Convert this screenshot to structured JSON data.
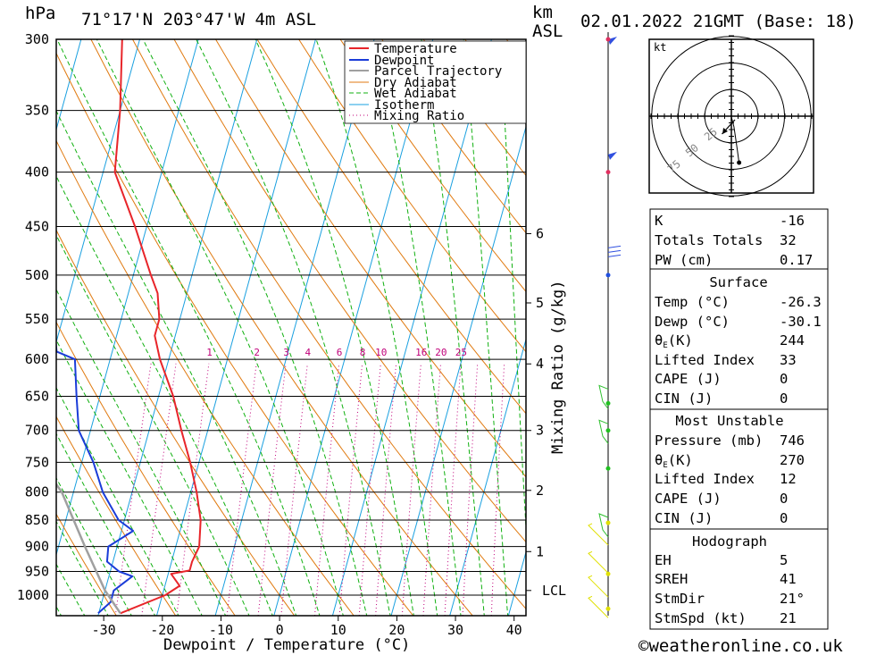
{
  "header": {
    "location": "71°17'N  203°47'W  4m  ASL",
    "datetime": "02.01.2022  21GMT  (Base: 18)",
    "hpa_unit": "hPa",
    "km_unit": "km",
    "asl_unit": "ASL"
  },
  "colors": {
    "temperature": "#e8252a",
    "dewpoint": "#1a3cd8",
    "parcel": "#a0a0a0",
    "dry_adiabat": "#e07a10",
    "wet_adiabat": "#10b010",
    "isotherm": "#1aa0e0",
    "mixing_ratio": "#c0007a",
    "wind_upper": "#3050e0",
    "wind_mid": "#30c030",
    "wind_low": "#e0e000"
  },
  "chart_data": {
    "type": "line",
    "title": "",
    "xlabel": "Dewpoint / Temperature (°C)",
    "ylabel": "hPa",
    "right_axis_label": "Mixing Ratio (g/kg)",
    "xlim": [
      -40,
      42
    ],
    "pressure_levels": [
      300,
      350,
      400,
      450,
      500,
      550,
      600,
      650,
      700,
      750,
      800,
      850,
      900,
      950,
      1000
    ],
    "x_ticks": [
      -30,
      -20,
      -10,
      0,
      10,
      20,
      30,
      40
    ],
    "skew_deg_per_log": 50,
    "km_ticks": [
      {
        "label": "6",
        "p": 457
      },
      {
        "label": "5",
        "p": 531
      },
      {
        "label": "4",
        "p": 606
      },
      {
        "label": "3",
        "p": 700
      },
      {
        "label": "2",
        "p": 797
      },
      {
        "label": "1",
        "p": 910
      }
    ],
    "lcl": {
      "label": "LCL",
      "p": 990
    },
    "mixing_ratio_labels": [
      "1",
      "2",
      "3",
      "4",
      "6",
      "8",
      "10",
      "16",
      "20",
      "25"
    ],
    "mixing_ratio_values": [
      1,
      2,
      3,
      4,
      6,
      8,
      10,
      16,
      20,
      25
    ],
    "legend": [
      "Temperature",
      "Dewpoint",
      "Parcel Trajectory",
      "Dry Adiabat",
      "Wet Adiabat",
      "Isotherm",
      "Mixing Ratio"
    ],
    "legend_placement": "top-right",
    "series": [
      {
        "name": "Temperature",
        "points": [
          [
            1040,
            -26.3
          ],
          [
            1000,
            -19.5
          ],
          [
            980,
            -17.5
          ],
          [
            955,
            -19.5
          ],
          [
            948,
            -16.5
          ],
          [
            930,
            -16.5
          ],
          [
            900,
            -16
          ],
          [
            850,
            -17
          ],
          [
            800,
            -19
          ],
          [
            750,
            -21.5
          ],
          [
            700,
            -24.5
          ],
          [
            650,
            -27.5
          ],
          [
            600,
            -31.5
          ],
          [
            570,
            -33.5
          ],
          [
            550,
            -33.5
          ],
          [
            520,
            -35
          ],
          [
            500,
            -37
          ],
          [
            450,
            -42
          ],
          [
            400,
            -48
          ],
          [
            350,
            -50
          ],
          [
            300,
            -53
          ]
        ]
      },
      {
        "name": "Dewpoint",
        "points": [
          [
            1040,
            -30.1
          ],
          [
            1015,
            -28.5
          ],
          [
            990,
            -28.5
          ],
          [
            960,
            -26
          ],
          [
            950,
            -28.5
          ],
          [
            930,
            -31
          ],
          [
            900,
            -31.5
          ],
          [
            870,
            -28
          ],
          [
            850,
            -31
          ],
          [
            800,
            -35
          ],
          [
            750,
            -38
          ],
          [
            700,
            -42
          ],
          [
            650,
            -44
          ],
          [
            600,
            -46
          ],
          [
            590,
            -49.5
          ],
          [
            560,
            -51
          ],
          [
            550,
            -55
          ],
          [
            535,
            -60.5
          ],
          [
            530,
            -53.5
          ],
          [
            515,
            -57.5
          ],
          [
            500,
            -56
          ],
          [
            450,
            -58
          ],
          [
            400,
            -65
          ],
          [
            350,
            -70
          ],
          [
            300,
            -75
          ]
        ]
      },
      {
        "name": "Parcel Trajectory",
        "points": [
          [
            1040,
            -26.3
          ],
          [
            990,
            -30
          ],
          [
            900,
            -35.5
          ],
          [
            800,
            -42
          ],
          [
            760,
            -46
          ]
        ]
      }
    ],
    "winds": [
      {
        "p": 300,
        "color": "wind_upper",
        "pennant": true
      },
      {
        "p": 385,
        "color": "wind_upper",
        "pennant": true
      },
      {
        "p": 475,
        "color": "wind_upper",
        "pennant": false
      },
      {
        "p": 640,
        "color": "wind_mid",
        "pennant": false
      },
      {
        "p": 690,
        "color": "wind_mid",
        "pennant": false
      },
      {
        "p": 845,
        "color": "wind_mid",
        "pennant": false
      },
      {
        "p": 880,
        "color": "wind_low",
        "pennant": false
      },
      {
        "p": 935,
        "color": "wind_low",
        "pennant": false
      },
      {
        "p": 985,
        "color": "wind_low",
        "pennant": false
      },
      {
        "p": 1030,
        "color": "wind_low",
        "pennant": false
      }
    ],
    "wind_dots": [
      300,
      400,
      500,
      660,
      700,
      760,
      855,
      955,
      1030
    ]
  },
  "hodograph": {
    "unit": "kt",
    "ring_labels": [
      "25",
      "50",
      "75"
    ],
    "points": [
      [
        0,
        0
      ],
      [
        -0.2,
        -0.6
      ],
      [
        1.2,
        6
      ],
      [
        1.6,
        9
      ],
      [
        2.8,
        19
      ],
      [
        3.6,
        26
      ]
    ],
    "storm_motion": [
      -0.5,
      2
    ]
  },
  "indices": {
    "k_label": "K",
    "k_value": "-16",
    "tt_label": "Totals Totals",
    "tt_value": "32",
    "pw_label": "PW (cm)",
    "pw_value": "0.17",
    "surface_title": "Surface",
    "s_temp_label": "Temp (°C)",
    "s_temp_value": "-26.3",
    "s_dewp_label": "Dewp (°C)",
    "s_dewp_value": "-30.1",
    "s_theta_sym": "θ",
    "s_theta_sub": "E",
    "s_theta_unit": "(K)",
    "s_theta_value": "244",
    "s_li_label": "Lifted Index",
    "s_li_value": "33",
    "s_cape_label": "CAPE (J)",
    "s_cape_value": "0",
    "s_cin_label": "CIN (J)",
    "s_cin_value": "0",
    "mu_title": "Most Unstable",
    "mu_pres_label": "Pressure (mb)",
    "mu_pres_value": "746",
    "mu_theta_sym": "θ",
    "mu_theta_sub": "E",
    "mu_theta_unit": "(K)",
    "mu_theta_value": "270",
    "mu_li_label": "Lifted Index",
    "mu_li_value": "12",
    "mu_cape_label": "CAPE (J)",
    "mu_cape_value": "0",
    "mu_cin_label": "CIN (J)",
    "mu_cin_value": "0",
    "hodo_title": "Hodograph",
    "eh_label": "EH",
    "eh_value": "5",
    "sreh_label": "SREH",
    "sreh_value": "41",
    "stmdir_label": "StmDir",
    "stmdir_value": "21°",
    "stmspd_label": "StmSpd (kt)",
    "stmspd_value": "21"
  },
  "footer": {
    "copyright_symbol": "©",
    "copyright": "weatheronline.co.uk"
  }
}
